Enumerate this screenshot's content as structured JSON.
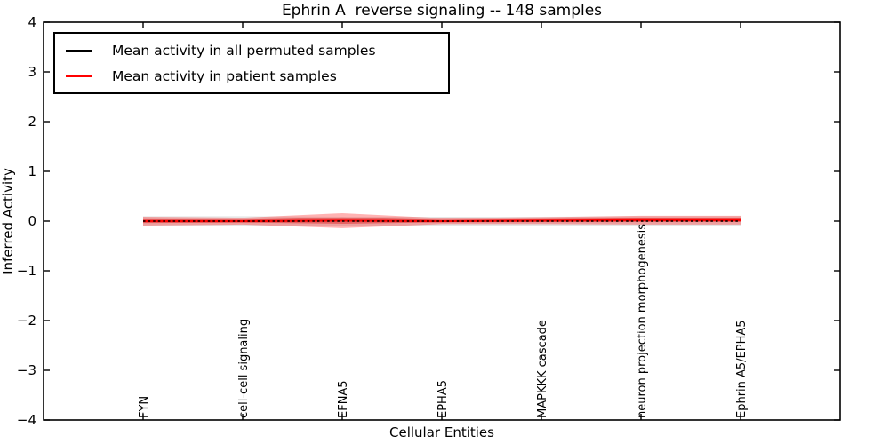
{
  "figure": {
    "title": "Ephrin A  reverse signaling -- 148 samples",
    "xlabel": "Cellular Entities",
    "ylabel": "Inferred Activity"
  },
  "legend": {
    "position": "upper left",
    "entries": [
      {
        "label": "Mean activity in all permuted samples",
        "color": "#000000"
      },
      {
        "label": "Mean activity in patient samples",
        "color": "#ff0000"
      }
    ]
  },
  "chart_data": {
    "type": "line",
    "title": "Ephrin A  reverse signaling -- 148 samples",
    "xlabel": "Cellular Entities",
    "ylabel": "Inferred Activity",
    "categories": [
      "FYN",
      "cell-cell signaling",
      "EFNA5",
      "EPHA5",
      "MAPKKK cascade",
      "neuron projection morphogenesis",
      "Ephrin A5/EPHA5"
    ],
    "xlim": [
      -1,
      7
    ],
    "ylim": [
      -4,
      4
    ],
    "yticks": [
      4,
      3,
      2,
      1,
      0,
      -1,
      -2,
      -3,
      -4
    ],
    "grid": false,
    "legend_position": "upper left",
    "series": [
      {
        "name": "Mean activity in all permuted samples",
        "color": "#000000",
        "line_style": "dashed",
        "values": [
          0.0,
          0.0,
          0.0,
          0.0,
          0.0,
          0.0,
          0.0
        ],
        "band_halfwidth": [
          0.1,
          0.1,
          0.09,
          0.09,
          0.09,
          0.1,
          0.1
        ],
        "band_color": "#9a9a9a"
      },
      {
        "name": "Mean activity in patient samples",
        "color": "#ff0000",
        "line_style": "solid",
        "values": [
          0.0,
          0.0,
          0.01,
          0.0,
          0.01,
          0.02,
          0.02
        ],
        "band_halfwidth": [
          0.09,
          0.07,
          0.15,
          0.06,
          0.07,
          0.09,
          0.09
        ],
        "band_color": "#ff0000"
      }
    ]
  }
}
